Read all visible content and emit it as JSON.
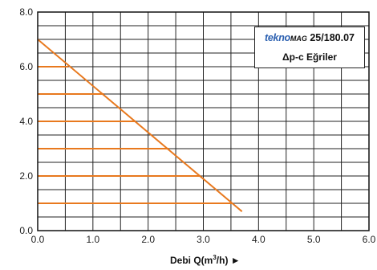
{
  "chart_data": {
    "type": "line",
    "title": "",
    "xlabel": "Debi Q(m³/h) ►",
    "ylabel": "",
    "xlim": [
      0,
      6
    ],
    "ylim": [
      0,
      8
    ],
    "x_ticks": [
      "0.0",
      "1.0",
      "2.0",
      "3.0",
      "4.0",
      "5.0",
      "6.0"
    ],
    "y_ticks": [
      "0.0",
      "2.0",
      "4.0",
      "6.0",
      "8.0"
    ],
    "grid": true,
    "series": [
      {
        "name": "",
        "color": "#e8791e",
        "x": [
          0.0,
          3.7
        ],
        "y": [
          7.0,
          0.7
        ]
      }
    ],
    "horizontal_levels": [
      {
        "y": 6.0,
        "x_end": 0.55
      },
      {
        "y": 5.0,
        "x_end": 1.2
      },
      {
        "y": 4.0,
        "x_end": 1.78
      },
      {
        "y": 3.0,
        "x_end": 2.38
      },
      {
        "y": 2.0,
        "x_end": 2.95
      },
      {
        "y": 1.0,
        "x_end": 3.52
      }
    ]
  },
  "legend": {
    "brand": "tekno",
    "model_prefix": "MAG",
    "model": "25/180.07",
    "subtitle": "Δp-c Eğriler"
  },
  "x_axis_title": {
    "prefix": "Debi Q(m",
    "sup": "3",
    "suffix": "/h) ►"
  },
  "colors": {
    "curve": "#e8791e",
    "grid": "#222222"
  }
}
